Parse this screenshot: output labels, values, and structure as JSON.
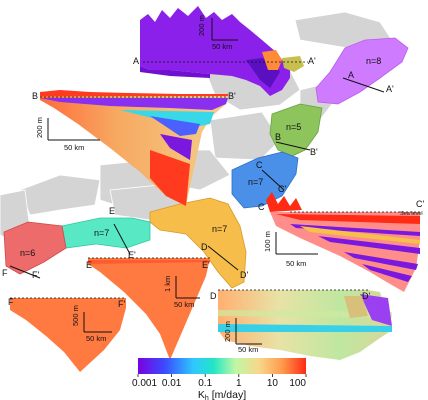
{
  "sections": {
    "A": {
      "start": "A",
      "end": "A'",
      "count": "n=8",
      "scale_v": "200 m",
      "scale_h": "50 km"
    },
    "B": {
      "start": "B",
      "end": "B'",
      "count": "n=5",
      "scale_v": "200 m",
      "scale_h": "50 km"
    },
    "C": {
      "start": "C",
      "end": "C'",
      "count": "n=7",
      "scale_v": "100 m",
      "scale_h": "50 km",
      "sea_level": "Sea level"
    },
    "D": {
      "start": "D",
      "end": "D'",
      "count": "n=7",
      "scale_v": "200 m",
      "scale_h": "50 km"
    },
    "E": {
      "start": "E",
      "end": "E'",
      "count": "n=7",
      "scale_v": "1 km",
      "scale_h": "50 km"
    },
    "F": {
      "start": "F",
      "end": "F'",
      "count": "n=6",
      "scale_v": "500 m",
      "scale_h": "50 km"
    }
  },
  "colorbar": {
    "ticks": [
      "0.001",
      "0.01",
      "0.1",
      "1",
      "10",
      "100"
    ],
    "label": "K",
    "label_sub": "h",
    "label_unit": " [m/day]",
    "stops": [
      "#7a00e0",
      "#3a4cff",
      "#2fc7ff",
      "#22e6c6",
      "#bff7a6",
      "#f7d78a",
      "#ff9a4d",
      "#ff2b14"
    ]
  },
  "region_colors": {
    "A": "#cf7bff",
    "B": "#8ec45c",
    "C": "#4a8fe8",
    "D": "#f6bd4a",
    "E": "#58e8c4",
    "F": "#ee6b6b",
    "land": "#d4d4d4",
    "land_stroke": "#ffffff"
  }
}
